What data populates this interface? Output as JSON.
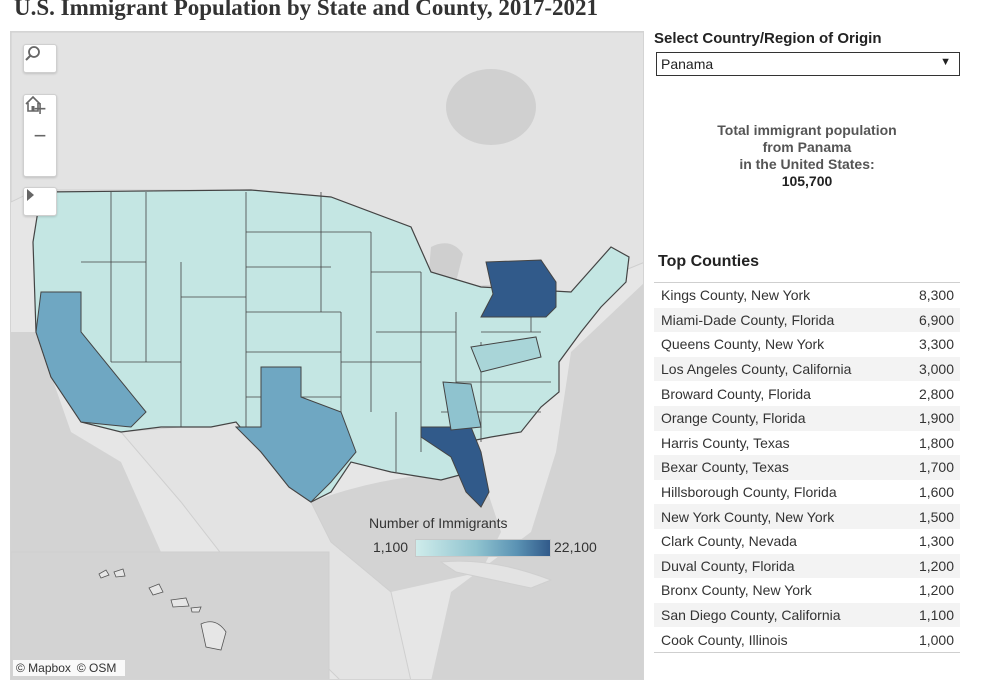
{
  "title": "U.S. Immigrant Population by State and County, 2017-2021",
  "filter": {
    "label": "Select Country/Region of Origin",
    "selected": "Panama"
  },
  "summary": {
    "line1": "Total immigrant population",
    "line2": "from Panama",
    "line3": "in the United States:",
    "total": "105,700"
  },
  "top_counties": {
    "title": "Top Counties",
    "rows": [
      {
        "county": "Kings County, New York",
        "value": "8,300"
      },
      {
        "county": "Miami-Dade County, Florida",
        "value": "6,900"
      },
      {
        "county": "Queens County, New York",
        "value": "3,300"
      },
      {
        "county": "Los Angeles County, California",
        "value": "3,000"
      },
      {
        "county": "Broward County, Florida",
        "value": "2,800"
      },
      {
        "county": "Orange County, Florida",
        "value": "1,900"
      },
      {
        "county": "Harris County, Texas",
        "value": "1,800"
      },
      {
        "county": "Bexar County, Texas",
        "value": "1,700"
      },
      {
        "county": "Hillsborough County, Florida",
        "value": "1,600"
      },
      {
        "county": "New York County, New York",
        "value": "1,500"
      },
      {
        "county": "Clark County, Nevada",
        "value": "1,300"
      },
      {
        "county": "Duval County, Florida",
        "value": "1,200"
      },
      {
        "county": "Bronx County, New York",
        "value": "1,200"
      },
      {
        "county": "San Diego County, California",
        "value": "1,100"
      },
      {
        "county": "Cook County, Illinois",
        "value": "1,000"
      }
    ]
  },
  "legend": {
    "title": "Number of Immigrants",
    "min": "1,100",
    "max": "22,100",
    "color_low": "#cfeceb",
    "color_high": "#315a8a"
  },
  "map": {
    "attribution": [
      "© Mapbox",
      "© OSM"
    ],
    "controls": [
      "search-icon",
      "zoom-in-icon",
      "zoom-out-icon",
      "home-icon",
      "expand-arrow-icon"
    ],
    "highlight_colors": {
      "new_york": "#315a8a",
      "florida": "#315a8a",
      "california": "#6fa7c2",
      "texas": "#6fa7c2",
      "georgia": "#8fc3cf",
      "virginia": "#a9d5d8",
      "other": "#c4e6e3"
    }
  }
}
